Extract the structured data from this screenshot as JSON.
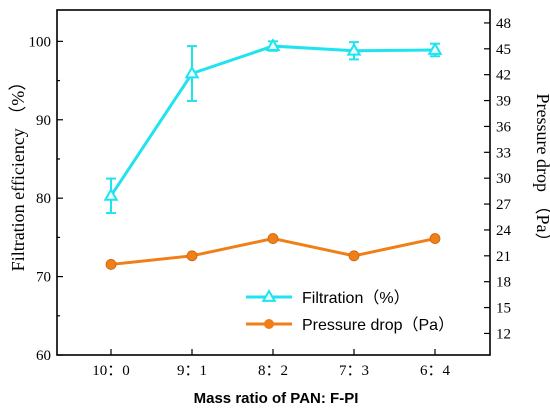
{
  "chart_data": {
    "type": "line",
    "categories": [
      "10：0",
      "9：1",
      "8：2",
      "7：3",
      "6：4"
    ],
    "xlabel": "Mass ratio of PAN: F-PI",
    "ylabel_left": "Filtration efficiency （%）",
    "ylabel_right": "Pressure drop （Pa）",
    "ylim_left": [
      60,
      104
    ],
    "yticks_left": [
      60,
      70,
      80,
      90,
      100
    ],
    "ylim_right": [
      9.5,
      49.5
    ],
    "yticks_right": [
      12,
      15,
      18,
      21,
      24,
      27,
      30,
      33,
      36,
      39,
      42,
      45,
      48
    ],
    "grid": false,
    "legend_position": "bottom-right",
    "series": [
      {
        "name": "Filtration（%）",
        "axis": "left",
        "color": "#1fe3ef",
        "marker": "triangle",
        "values": [
          80.3,
          95.9,
          99.4,
          98.8,
          98.9
        ],
        "errors": [
          2.2,
          3.5,
          0.6,
          1.1,
          0.8
        ]
      },
      {
        "name": "Pressure drop（Pa）",
        "axis": "right",
        "color": "#f07f17",
        "marker": "circle",
        "values": [
          20,
          21,
          23,
          21,
          23
        ]
      }
    ]
  }
}
